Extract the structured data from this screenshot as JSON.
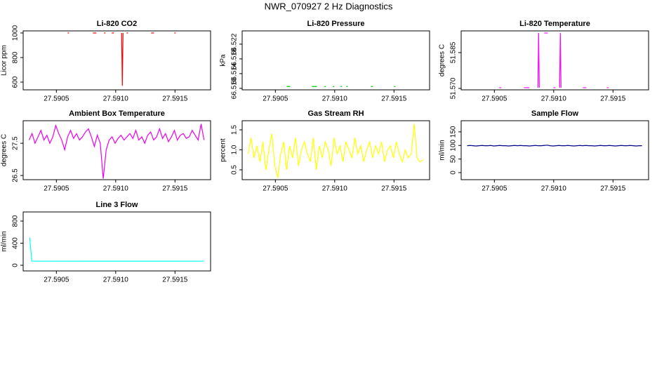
{
  "title": "NWR_070927  2 Hz Diagnostics",
  "chart_data": [
    {
      "type": "line",
      "title": "Li-820 CO2",
      "ylabel": "Licor ppm",
      "color": "#ff0000",
      "x": [
        27.590595,
        27.590607,
        27.5907,
        27.590808,
        27.590837,
        27.59086,
        27.590902,
        27.590914,
        27.59094,
        27.590967,
        27.590985,
        27.59102,
        27.59105,
        27.591056,
        27.591062,
        27.59108,
        27.591092,
        27.591104,
        27.5912,
        27.591299,
        27.591322,
        27.5914,
        27.591494,
        27.591506
      ],
      "values": [
        1000,
        1000,
        null,
        1000,
        1000,
        null,
        1000,
        1000,
        null,
        1000,
        1000,
        null,
        1000,
        570,
        1000,
        null,
        1000,
        1000,
        null,
        1000,
        1000,
        null,
        1000,
        1000
      ],
      "xlim": [
        27.59022,
        27.5918
      ],
      "xticks": [
        27.5905,
        {
          "value": 27.591,
          "label": "27.5910"
        },
        27.5915
      ],
      "ylim": [
        537,
        1017
      ],
      "yticks": [
        600,
        800,
        1000
      ]
    },
    {
      "type": "line",
      "title": "Li-820 Pressure",
      "ylabel": "kPa",
      "color": "#00cc00",
      "x": [
        27.590595,
        27.590625,
        27.5907,
        27.590808,
        27.59085,
        27.59088,
        27.590914,
        27.590926,
        27.59094,
        27.590985,
        27.590997,
        27.59102,
        27.59105,
        27.591062,
        27.59108,
        27.591098,
        27.59111,
        27.5912,
        27.591305,
        27.591322,
        27.5914,
        27.5915,
        27.591512
      ],
      "values": [
        66.5105,
        66.5105,
        null,
        66.5105,
        66.5105,
        null,
        66.5105,
        66.5105,
        null,
        66.5105,
        66.5105,
        null,
        66.5105,
        66.5105,
        null,
        66.5105,
        66.5105,
        null,
        66.5105,
        66.5105,
        null,
        66.5105,
        66.5105
      ],
      "xlim": [
        27.59022,
        27.5918
      ],
      "xticks": [
        27.5905,
        {
          "value": 27.591,
          "label": "27.5910"
        },
        27.5915
      ],
      "ylim": [
        66.5096,
        66.5256
      ],
      "yticks": [
        {
          "value": 66.51,
          "label": "66.510"
        },
        66.514,
        66.518,
        66.522
      ]
    },
    {
      "type": "line",
      "title": "Li-820 Temperature",
      "ylabel": "degrees C",
      "color": "#ff00ff",
      "x": [
        27.590541,
        27.590559,
        27.5906,
        27.590749,
        27.590796,
        27.59083,
        27.590867,
        27.590873,
        27.590879,
        27.5909,
        27.59092,
        27.59095,
        27.59098,
        27.590997,
        27.591015,
        27.59103,
        27.59105,
        27.591056,
        27.591062,
        27.5911,
        27.591246,
        27.591275,
        27.5913,
        27.591447,
        27.591464
      ],
      "values": [
        51.5703,
        51.5703,
        null,
        51.5703,
        51.5703,
        null,
        51.5703,
        51.5932,
        51.5703,
        null,
        51.5932,
        51.5932,
        null,
        51.5703,
        51.5703,
        null,
        51.5703,
        51.5932,
        51.5703,
        null,
        51.5703,
        51.5703,
        null,
        51.5703,
        51.5703
      ],
      "xlim": [
        27.59022,
        27.5918
      ],
      "xticks": [
        27.5905,
        {
          "value": 27.591,
          "label": "27.5910"
        },
        27.5915
      ],
      "ylim": [
        51.5694,
        51.5941
      ],
      "yticks": [
        {
          "value": 51.57,
          "label": "51.570"
        },
        51.585
      ]
    },
    {
      "type": "line",
      "title": "Ambient Box Temperature",
      "ylabel": "degrees C",
      "color": "#ee00ee",
      "x": [
        27.59027,
        27.590295,
        27.59032,
        27.590345,
        27.59037,
        27.590395,
        27.59042,
        27.590445,
        27.59047,
        27.590495,
        27.59052,
        27.590545,
        27.59057,
        27.590595,
        27.59062,
        27.590645,
        27.59067,
        27.590695,
        27.59072,
        27.590745,
        27.59077,
        27.590795,
        27.59082,
        27.590845,
        27.59087,
        27.590895,
        27.59092,
        27.590945,
        27.59097,
        27.590995,
        27.59102,
        27.591045,
        27.59107,
        27.591095,
        27.59112,
        27.591145,
        27.59117,
        27.591195,
        27.59122,
        27.591245,
        27.59127,
        27.591295,
        27.59132,
        27.591345,
        27.59137,
        27.591395,
        27.59142,
        27.591445,
        27.59147,
        27.591495,
        27.59152,
        27.591545,
        27.59157,
        27.591595,
        27.59162,
        27.591645,
        27.59167,
        27.591695,
        27.59172,
        27.591745
      ],
      "values": [
        27.6,
        27.8,
        27.5,
        27.7,
        27.9,
        27.6,
        27.75,
        27.5,
        27.7,
        28.05,
        27.8,
        27.6,
        27.3,
        27.7,
        27.9,
        27.65,
        27.8,
        27.6,
        27.7,
        27.85,
        27.95,
        27.7,
        27.4,
        27.75,
        27.5,
        26.4,
        27.3,
        27.6,
        27.7,
        27.5,
        27.65,
        27.75,
        27.6,
        27.7,
        27.8,
        27.65,
        27.9,
        27.6,
        27.7,
        27.5,
        27.75,
        27.85,
        27.6,
        27.7,
        27.95,
        27.65,
        27.8,
        27.55,
        27.7,
        27.9,
        27.6,
        27.75,
        27.8,
        27.65,
        27.7,
        27.9,
        27.75,
        27.6,
        28.1,
        27.6
      ],
      "xlim": [
        27.59022,
        27.5918
      ],
      "xticks": [
        27.5905,
        {
          "value": 27.591,
          "label": "27.5910"
        },
        27.5915
      ],
      "ylim": [
        26.37,
        28.2
      ],
      "yticks": [
        26.5,
        27.5
      ]
    },
    {
      "type": "line",
      "title": "Gas Stream RH",
      "ylabel": "percent",
      "color": "#ffff00",
      "x": [
        27.59027,
        27.590295,
        27.59032,
        27.590345,
        27.59037,
        27.590395,
        27.59042,
        27.590445,
        27.59047,
        27.590495,
        27.59052,
        27.590545,
        27.59057,
        27.590595,
        27.59062,
        27.590645,
        27.59067,
        27.590695,
        27.59072,
        27.590745,
        27.59077,
        27.590795,
        27.59082,
        27.590845,
        27.59087,
        27.590895,
        27.59092,
        27.590945,
        27.59097,
        27.590995,
        27.59102,
        27.591045,
        27.59107,
        27.591095,
        27.59112,
        27.591145,
        27.59117,
        27.591195,
        27.59122,
        27.591245,
        27.59127,
        27.591295,
        27.59132,
        27.591345,
        27.59137,
        27.591395,
        27.59142,
        27.591445,
        27.59147,
        27.591495,
        27.59152,
        27.591545,
        27.59157,
        27.591595,
        27.59162,
        27.591645,
        27.59167,
        27.591695,
        27.59172,
        27.591745
      ],
      "values": [
        0.9,
        1.3,
        0.8,
        1.1,
        0.7,
        1.2,
        0.5,
        1.0,
        1.4,
        0.6,
        0.3,
        0.9,
        1.2,
        0.5,
        1.1,
        0.8,
        1.3,
        0.6,
        1.0,
        1.2,
        0.9,
        0.7,
        1.3,
        0.5,
        1.1,
        0.8,
        1.2,
        1.0,
        0.6,
        1.3,
        0.9,
        1.1,
        0.7,
        1.2,
        1.0,
        0.8,
        1.3,
        0.9,
        1.1,
        0.7,
        1.0,
        1.2,
        0.8,
        1.1,
        0.9,
        1.2,
        0.7,
        1.0,
        1.1,
        0.8,
        1.2,
        0.9,
        0.7,
        1.0,
        0.8,
        0.9,
        1.65,
        0.8,
        0.7,
        0.75
      ],
      "xlim": [
        27.59022,
        27.5918
      ],
      "xticks": [
        27.5905,
        {
          "value": 27.591,
          "label": "27.5910"
        },
        27.5915
      ],
      "ylim": [
        0.254,
        1.728
      ],
      "yticks": [
        0.5,
        {
          "value": 1,
          "label": "1.0"
        },
        1.5
      ]
    },
    {
      "type": "line",
      "title": "Sample Flow",
      "ylabel": "ml/min",
      "color": "#00008b",
      "x": [
        27.59027,
        27.590295,
        27.59032,
        27.590345,
        27.59037,
        27.590395,
        27.59042,
        27.590445,
        27.59047,
        27.590495,
        27.59052,
        27.590545,
        27.59057,
        27.590595,
        27.59062,
        27.590645,
        27.59067,
        27.590695,
        27.59072,
        27.590745,
        27.59077,
        27.590795,
        27.59082,
        27.590845,
        27.59087,
        27.590895,
        27.59092,
        27.590945,
        27.59097,
        27.590995,
        27.59102,
        27.591045,
        27.59107,
        27.591095,
        27.59112,
        27.591145,
        27.59117,
        27.591195,
        27.59122,
        27.591245,
        27.59127,
        27.591295,
        27.59132,
        27.591345,
        27.59137,
        27.591395,
        27.59142,
        27.591445,
        27.59147,
        27.591495,
        27.59152,
        27.591545,
        27.59157,
        27.591595,
        27.59162,
        27.591645,
        27.59167,
        27.591695,
        27.59172,
        27.591745
      ],
      "values": [
        99,
        100,
        99,
        98,
        99,
        100,
        99,
        99,
        100,
        98,
        99,
        100,
        99,
        99,
        98,
        99,
        100,
        99,
        100,
        99,
        99,
        98,
        99,
        100,
        99,
        99,
        100,
        101,
        99,
        98,
        99,
        100,
        99,
        99,
        100,
        99,
        98,
        99,
        100,
        99,
        100,
        99,
        99,
        98,
        99,
        100,
        99,
        99,
        100,
        99,
        98,
        99,
        100,
        99,
        99,
        100,
        99,
        98,
        99,
        99
      ],
      "xlim": [
        27.59022,
        27.5918
      ],
      "xticks": [
        27.5905,
        {
          "value": 27.591,
          "label": "27.5910"
        },
        27.5915
      ],
      "ylim": [
        -26,
        191
      ],
      "yticks": [
        0,
        50,
        100,
        150
      ]
    },
    {
      "type": "line",
      "title": "Line 3 Flow",
      "ylabel": "ml/min",
      "color": "#00ffff",
      "x": [
        27.590275,
        27.590293,
        27.591,
        27.591745
      ],
      "values": [
        500,
        75,
        74,
        75
      ],
      "xlim": [
        27.59022,
        27.5918
      ],
      "xticks": [
        27.5905,
        {
          "value": 27.591,
          "label": "27.5910"
        },
        27.5915
      ],
      "ylim": [
        -102,
        965
      ],
      "yticks": [
        0,
        400,
        800
      ]
    }
  ]
}
